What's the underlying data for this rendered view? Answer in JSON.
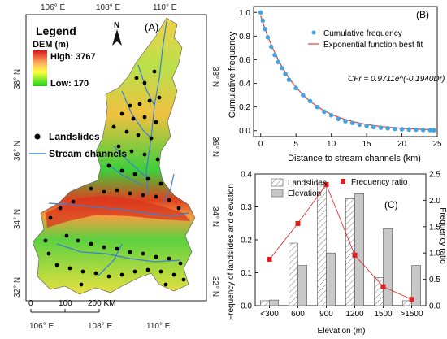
{
  "map": {
    "panel_label": "(A)",
    "top_ticks": [
      "106° E",
      "108° E",
      "110° E"
    ],
    "bottom_ticks": [
      "106° E",
      "108° E",
      "110° E"
    ],
    "left_ticks": [
      "38° N",
      "36° N",
      "34° N",
      "32° N"
    ],
    "right_ticks": [
      "38° N",
      "36° N",
      "34° N",
      "32° N"
    ],
    "north_label": "N",
    "legend_title": "Legend",
    "dem_label": "DEM (m)",
    "dem_high": "High: 3767",
    "dem_low": "Low: 170",
    "landslides_label": "Landslides",
    "streams_label": "Stream channels",
    "scale_ticks": [
      "0",
      "100",
      "200 KM"
    ],
    "colors": {
      "high": "#d7191c",
      "mid": "#ffff40",
      "low": "#1ad11a",
      "stream": "#3a7fd5",
      "points": "#000000"
    }
  },
  "chart_data": [
    {
      "type": "scatter",
      "panel_label": "(B)",
      "xlabel": "Distance to stream channels (km)",
      "ylabel": "Cumulative frequency",
      "xlim": [
        -1,
        25
      ],
      "ylim": [
        -0.05,
        1.05
      ],
      "x_ticks": [
        0,
        5,
        10,
        15,
        20,
        25
      ],
      "y_ticks": [
        0.0,
        0.2,
        0.4,
        0.6,
        0.8,
        1.0
      ],
      "legend": [
        "Cumulative frequency",
        "Exponential function best fit"
      ],
      "legend_position": "top-right",
      "equation": "CFr = 0.9711e^(-0.1940Dr)",
      "fit": {
        "a": 0.9711,
        "b": -0.194
      },
      "series": [
        {
          "name": "Cumulative frequency",
          "color": "#41a6e0",
          "x": [
            0,
            0.3,
            0.6,
            1,
            1.5,
            2,
            2.5,
            3,
            3.5,
            4,
            5,
            6,
            7,
            8,
            9,
            10,
            11,
            12,
            13,
            14,
            15,
            16,
            17,
            18,
            19,
            20,
            21,
            22,
            23,
            24,
            24.5
          ],
          "y": [
            1.0,
            0.93,
            0.86,
            0.79,
            0.71,
            0.64,
            0.58,
            0.53,
            0.48,
            0.43,
            0.36,
            0.3,
            0.25,
            0.2,
            0.16,
            0.13,
            0.1,
            0.08,
            0.065,
            0.05,
            0.04,
            0.03,
            0.025,
            0.02,
            0.015,
            0.012,
            0.01,
            0.008,
            0.006,
            0.005,
            0.004
          ]
        },
        {
          "name": "Exponential function best fit",
          "color": "#e03a3a"
        }
      ]
    },
    {
      "type": "bar",
      "panel_label": "(C)",
      "categories": [
        "<300",
        "600",
        "900",
        "1200",
        "1500",
        ">1500"
      ],
      "xlabel": "Elevation (m)",
      "ylabel": "Frequency of landslides and elevation",
      "y2label": "Frequency ratio",
      "ylim": [
        0,
        0.4
      ],
      "y2lim": [
        0,
        2.5
      ],
      "y_ticks": [
        0.0,
        0.1,
        0.2,
        0.3,
        0.4
      ],
      "y2_ticks": [
        0.0,
        0.5,
        1.0,
        1.5,
        2.0,
        2.5
      ],
      "legend_position": "top-left",
      "series": [
        {
          "name": "Landslides",
          "values": [
            0.015,
            0.19,
            0.37,
            0.325,
            0.085,
            0.015
          ],
          "pattern": "hatched"
        },
        {
          "name": "Elevation",
          "values": [
            0.017,
            0.122,
            0.16,
            0.34,
            0.234,
            0.122
          ],
          "color": "#c8c8c8"
        },
        {
          "name": "Frequency ratio",
          "axis": "right",
          "values": [
            0.88,
            1.56,
            2.3,
            0.96,
            0.36,
            0.12
          ],
          "color": "#e02020"
        }
      ]
    }
  ]
}
